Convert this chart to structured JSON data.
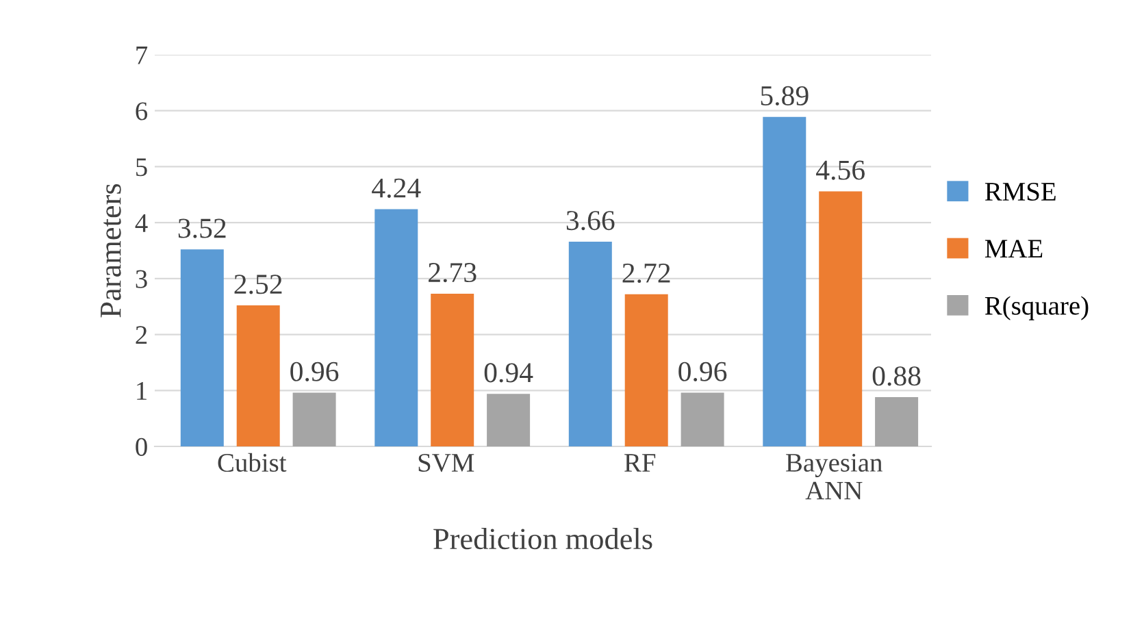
{
  "chart_data": {
    "type": "bar",
    "categories": [
      "Cubist",
      "SVM",
      "RF",
      "Bayesian\nANN"
    ],
    "series": [
      {
        "name": "RMSE",
        "color": "#5b9bd5",
        "values": [
          3.52,
          4.24,
          3.66,
          5.89
        ]
      },
      {
        "name": "MAE",
        "color": "#ed7d31",
        "values": [
          2.52,
          2.73,
          2.72,
          4.56
        ]
      },
      {
        "name": "R(square)",
        "color": "#a5a5a5",
        "values": [
          0.96,
          0.94,
          0.96,
          0.88
        ]
      }
    ],
    "xlabel": "Prediction models",
    "ylabel": "Parameters",
    "ylim": [
      0,
      7
    ],
    "yticks": [
      0,
      1,
      2,
      3,
      4,
      5,
      6,
      7
    ],
    "grid": "y",
    "legend": "right",
    "data_labels": true
  }
}
